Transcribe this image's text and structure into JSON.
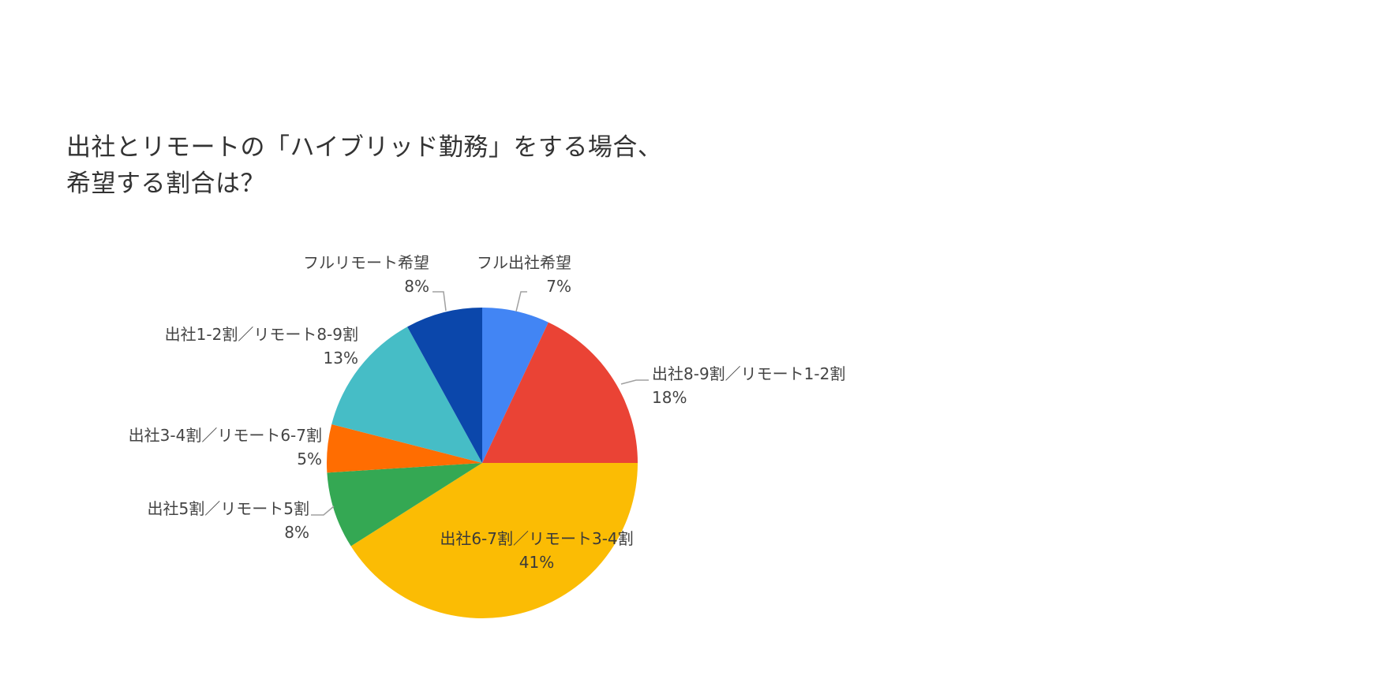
{
  "chart_data": {
    "type": "pie",
    "title": "出社とリモートの「ハイブリッド勤務」をする場合、希望する割合は？",
    "title_lines": [
      "出社とリモートの「ハイブリッド勤務」をする場合、",
      "希望する割合は？"
    ],
    "categories": [
      "フル出社希望",
      "出社8-9割／リモート1-2割",
      "出社6-7割／リモート3-4割",
      "出社5割／リモート5割",
      "出社3-4割／リモート6-7割",
      "出社1-2割／リモート8-9割",
      "フルリモート希望"
    ],
    "values": [
      7,
      18,
      41,
      8,
      5,
      13,
      8
    ],
    "value_labels": [
      "7%",
      "18%",
      "41%",
      "8%",
      "5%",
      "13%",
      "8%"
    ],
    "colors": [
      "#4285F4",
      "#EA4335",
      "#FBBC04",
      "#34A853",
      "#FF6D01",
      "#46BDC6",
      "#0B47AB"
    ],
    "start_angle": "12 o'clock, clockwise",
    "legend": "none (labels on slices)",
    "unit": "%"
  }
}
